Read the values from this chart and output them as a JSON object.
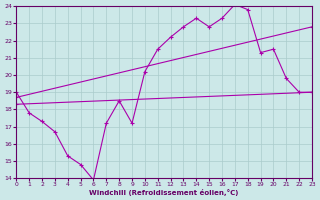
{
  "xlabel": "Windchill (Refroidissement éolien,°C)",
  "bg_color": "#cce8e8",
  "grid_color": "#aacccc",
  "line_color": "#aa00aa",
  "xlim": [
    0,
    23
  ],
  "ylim": [
    14,
    24
  ],
  "yticks": [
    14,
    15,
    16,
    17,
    18,
    19,
    20,
    21,
    22,
    23,
    24
  ],
  "xticks": [
    0,
    1,
    2,
    3,
    4,
    5,
    6,
    7,
    8,
    9,
    10,
    11,
    12,
    13,
    14,
    15,
    16,
    17,
    18,
    19,
    20,
    21,
    22,
    23
  ],
  "line1_x": [
    0,
    1,
    2,
    3,
    4,
    5,
    6,
    7,
    8,
    9,
    10,
    11,
    12,
    13,
    14,
    15,
    16,
    17,
    18,
    19,
    20,
    21,
    22,
    23
  ],
  "line1_y": [
    19.0,
    17.8,
    17.3,
    16.7,
    15.3,
    14.8,
    13.9,
    17.2,
    18.5,
    17.2,
    20.2,
    21.5,
    22.2,
    22.8,
    23.3,
    22.8,
    23.3,
    24.1,
    23.8,
    21.3,
    21.5,
    19.8,
    19.0,
    19.0
  ],
  "line2_x": [
    0,
    23
  ],
  "line2_y": [
    18.7,
    22.8
  ],
  "line3_x": [
    0,
    23
  ],
  "line3_y": [
    18.3,
    19.0
  ]
}
